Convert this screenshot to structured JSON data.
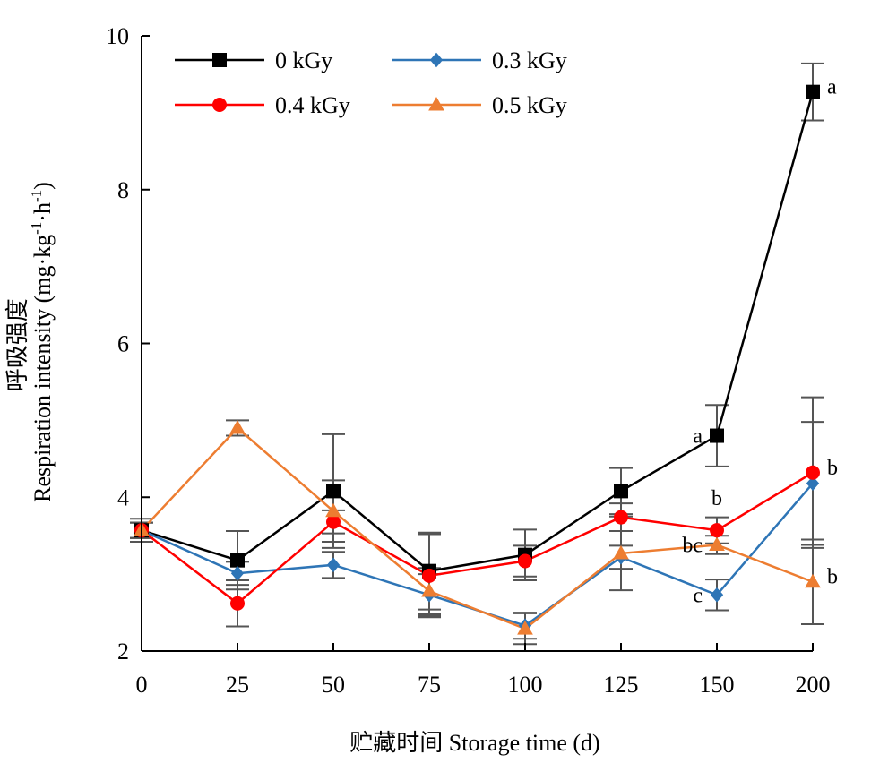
{
  "chart_data": {
    "type": "line",
    "xlabel": "贮藏时间 Storage time (d)",
    "ylabel": {
      "cn": "呼吸强度",
      "en_prefix": "Respiration intensity (mg·kg",
      "sup1": "-1",
      "mid": "·h",
      "sup2": "-1",
      "suffix": ")"
    },
    "x_categories": [
      "0",
      "25",
      "50",
      "75",
      "100",
      "125",
      "150",
      "200"
    ],
    "ylim": [
      2,
      10
    ],
    "yticks": [
      "2",
      "4",
      "6",
      "8",
      "10"
    ],
    "grid": false,
    "legend_position": "top-left",
    "series": [
      {
        "name": "0 kGy",
        "color": "#000000",
        "marker": "square",
        "values": [
          3.57,
          3.18,
          4.08,
          3.04,
          3.25,
          4.08,
          4.8,
          9.27
        ],
        "errors": [
          0.15,
          0.38,
          0.74,
          0.5,
          0.33,
          0.3,
          0.4,
          0.37
        ]
      },
      {
        "name": "0.3 kGy",
        "color": "#2E75B6",
        "marker": "diamond",
        "values": [
          3.57,
          3.01,
          3.12,
          2.73,
          2.33,
          3.22,
          2.73,
          4.18
        ],
        "errors": [
          0.1,
          0.15,
          0.17,
          0.27,
          0.17,
          0.15,
          0.2,
          0.8
        ]
      },
      {
        "name": "0.4 kGy",
        "color": "#FF0000",
        "marker": "circle",
        "values": [
          3.57,
          2.62,
          3.68,
          2.98,
          3.17,
          3.74,
          3.57,
          4.32
        ],
        "errors": [
          0.1,
          0.3,
          0.15,
          0.54,
          0.2,
          0.18,
          0.17,
          0.98
        ]
      },
      {
        "name": "0.5 kGy",
        "color": "#ED7D31",
        "marker": "triangle",
        "values": [
          3.57,
          4.9,
          3.82,
          2.78,
          2.29,
          3.27,
          3.38,
          2.9
        ],
        "errors": [
          0.1,
          0.1,
          0.4,
          0.3,
          0.2,
          0.48,
          0.12,
          0.55
        ]
      }
    ],
    "annotations": [
      {
        "text": "a",
        "series": 0,
        "index": 7,
        "side": "right"
      },
      {
        "text": "a",
        "series": 0,
        "index": 6,
        "side": "left"
      },
      {
        "text": "b",
        "series": 2,
        "index": 6,
        "side": "above-left"
      },
      {
        "text": "bc",
        "series": 3,
        "index": 6,
        "side": "left"
      },
      {
        "text": "c",
        "series": 1,
        "index": 6,
        "side": "left"
      },
      {
        "text": "b",
        "series": 2,
        "index": 7,
        "side": "right"
      },
      {
        "text": "b",
        "series": 3,
        "index": 7,
        "side": "right"
      }
    ]
  }
}
